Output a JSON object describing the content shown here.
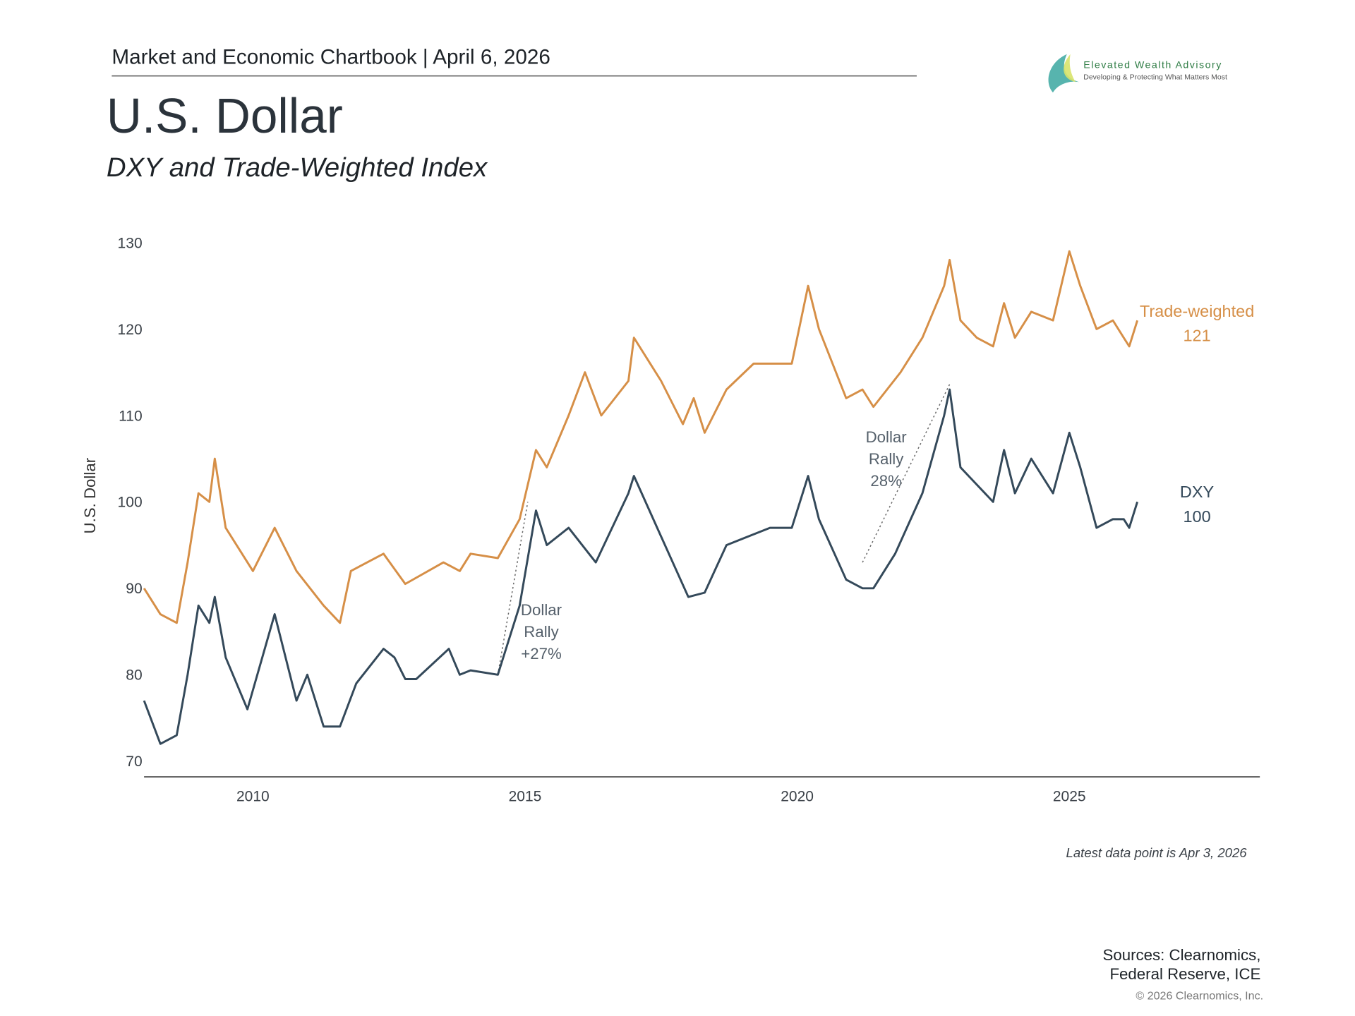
{
  "header": {
    "chartbook": "Market and Economic Chartbook | April 6, 2026",
    "title": "U.S. Dollar",
    "subtitle": "DXY and Trade-Weighted Index"
  },
  "logo": {
    "name": "Elevated Wealth Advisory",
    "tagline": "Developing & Protecting What Matters Most"
  },
  "footer": {
    "latest": "Latest data point is Apr 3, 2026",
    "sources_line1": "Sources: Clearnomics,",
    "sources_line2": "Federal Reserve, ICE",
    "copyright": "© 2026 Clearnomics, Inc."
  },
  "chart_data": {
    "type": "line",
    "title": "DXY and Trade-Weighted Index",
    "xlabel": "",
    "ylabel": "U.S. Dollar",
    "xlim": [
      2008.0,
      2028.5
    ],
    "ylim": [
      70,
      130
    ],
    "yticks": [
      "70",
      "80",
      "90",
      "100",
      "110",
      "120",
      "130"
    ],
    "xticks": [
      "2010",
      "2015",
      "2020",
      "2025"
    ],
    "grid": false,
    "colors": {
      "trade_weighted": "#d68f47",
      "dxy": "#34495a",
      "annotation": "#55606b"
    },
    "series": [
      {
        "name": "Trade-weighted",
        "label": "Trade-weighted",
        "last_value_label": "121",
        "x": [
          2008.0,
          2008.3,
          2008.6,
          2008.8,
          2009.0,
          2009.2,
          2009.3,
          2009.5,
          2010.0,
          2010.4,
          2010.8,
          2011.3,
          2011.6,
          2011.8,
          2012.4,
          2012.8,
          2013.5,
          2013.8,
          2014.0,
          2014.5,
          2014.9,
          2015.2,
          2015.4,
          2015.8,
          2016.1,
          2016.4,
          2016.9,
          2017.0,
          2017.5,
          2017.9,
          2018.1,
          2018.3,
          2018.7,
          2019.2,
          2019.9,
          2020.2,
          2020.4,
          2020.9,
          2021.2,
          2021.4,
          2021.9,
          2022.3,
          2022.7,
          2022.8,
          2023.0,
          2023.3,
          2023.6,
          2023.8,
          2024.0,
          2024.3,
          2024.7,
          2025.0,
          2025.2,
          2025.5,
          2025.8,
          2026.0,
          2026.1,
          2026.25
        ],
        "y": [
          90,
          87,
          86,
          93,
          101,
          100,
          105,
          97,
          92,
          97,
          92,
          88,
          86,
          92,
          94,
          90.5,
          93,
          92,
          94,
          93.5,
          98,
          106,
          104,
          110,
          115,
          110,
          114,
          119,
          114,
          109,
          112,
          108,
          113,
          116,
          116,
          125,
          120,
          112,
          113,
          111,
          115,
          119,
          125,
          128,
          121,
          119,
          118,
          123,
          119,
          122,
          121,
          129,
          125,
          120,
          121,
          119,
          118,
          121
        ]
      },
      {
        "name": "DXY",
        "label": "DXY",
        "last_value_label": "100",
        "x": [
          2008.0,
          2008.3,
          2008.6,
          2008.8,
          2009.0,
          2009.2,
          2009.3,
          2009.5,
          2009.9,
          2010.4,
          2010.8,
          2011.0,
          2011.3,
          2011.6,
          2011.9,
          2012.4,
          2012.6,
          2012.8,
          2013.0,
          2013.6,
          2013.8,
          2014.0,
          2014.5,
          2014.9,
          2015.2,
          2015.4,
          2015.8,
          2016.3,
          2016.9,
          2017.0,
          2017.5,
          2018.0,
          2018.3,
          2018.7,
          2019.5,
          2019.9,
          2020.2,
          2020.4,
          2020.9,
          2021.2,
          2021.4,
          2021.8,
          2022.3,
          2022.7,
          2022.8,
          2023.0,
          2023.3,
          2023.6,
          2023.8,
          2024.0,
          2024.3,
          2024.7,
          2025.0,
          2025.2,
          2025.5,
          2025.8,
          2026.0,
          2026.1,
          2026.25
        ],
        "y": [
          77,
          72,
          73,
          80,
          88,
          86,
          89,
          82,
          76,
          87,
          77,
          80,
          74,
          74,
          79,
          83,
          82,
          79.5,
          79.5,
          83,
          80,
          80.5,
          80,
          88,
          99,
          95,
          97,
          93,
          101,
          103,
          96,
          89,
          89.5,
          95,
          97,
          97,
          103,
          98,
          91,
          90,
          90,
          94,
          101,
          110,
          113,
          104,
          102,
          100,
          106,
          101,
          105,
          101,
          108,
          104,
          97,
          98,
          98,
          97,
          100
        ]
      }
    ],
    "annotations": [
      {
        "lines": [
          "Dollar",
          "Rally",
          "+27%"
        ],
        "from": [
          2014.5,
          80
        ],
        "to": [
          2015.05,
          100
        ]
      },
      {
        "lines": [
          "Dollar",
          "Rally",
          "28%"
        ],
        "from": [
          2021.2,
          93
        ],
        "to": [
          2022.8,
          113.6
        ]
      }
    ]
  }
}
